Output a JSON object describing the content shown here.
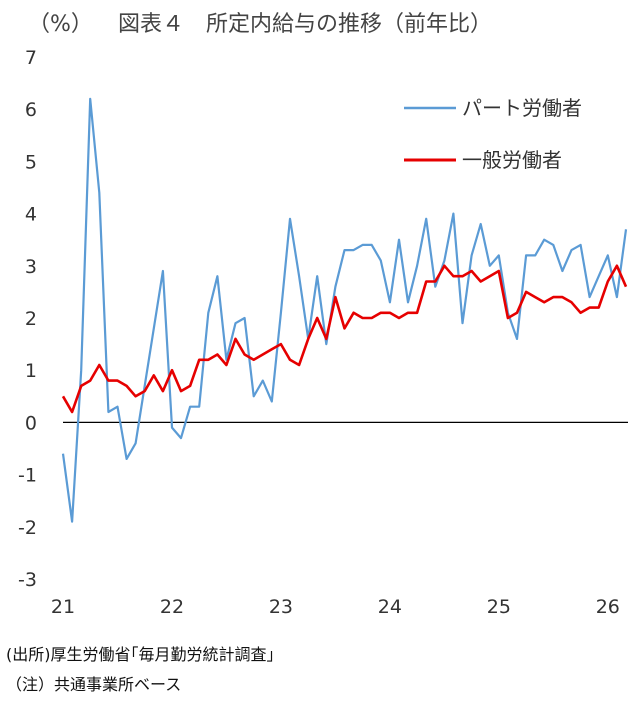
{
  "chart_data": {
    "type": "line",
    "unit_label": "（%）",
    "title": "図表４　所定内給与の推移（前年比）",
    "ylim": [
      -3,
      7
    ],
    "yticks": [
      "-3",
      "-2",
      "-1",
      "0",
      "1",
      "2",
      "3",
      "4",
      "5",
      "6",
      "7"
    ],
    "xticks": [
      "21",
      "22",
      "23",
      "24",
      "25",
      "26"
    ],
    "x_start": "2021-01",
    "legend_position": "top-right",
    "series": [
      {
        "name": "パート労働者",
        "color": "#5b9bd5",
        "values": [
          -0.6,
          -1.9,
          1.0,
          6.2,
          4.4,
          0.2,
          0.3,
          -0.7,
          -0.4,
          0.7,
          1.8,
          2.9,
          -0.1,
          -0.3,
          0.3,
          0.3,
          2.1,
          2.8,
          1.2,
          1.9,
          2.0,
          0.5,
          0.8,
          0.4,
          2.1,
          3.9,
          2.8,
          1.6,
          2.8,
          1.5,
          2.6,
          3.3,
          3.3,
          3.4,
          3.4,
          3.1,
          2.3,
          3.5,
          2.3,
          3.0,
          3.9,
          2.6,
          3.1,
          4.0,
          1.9,
          3.2,
          3.8,
          3.0,
          3.2,
          2.1,
          1.6,
          3.2,
          3.2,
          3.5,
          3.4,
          2.9,
          3.3,
          3.4,
          2.4,
          2.8,
          3.2,
          2.4,
          3.7
        ]
      },
      {
        "name": "一般労働者",
        "color": "#e60000",
        "values": [
          0.5,
          0.2,
          0.7,
          0.8,
          1.1,
          0.8,
          0.8,
          0.7,
          0.5,
          0.6,
          0.9,
          0.6,
          1.0,
          0.6,
          0.7,
          1.2,
          1.2,
          1.3,
          1.1,
          1.6,
          1.3,
          1.2,
          1.3,
          1.4,
          1.5,
          1.2,
          1.1,
          1.6,
          2.0,
          1.6,
          2.4,
          1.8,
          2.1,
          2.0,
          2.0,
          2.1,
          2.1,
          2.0,
          2.1,
          2.1,
          2.7,
          2.7,
          3.0,
          2.8,
          2.8,
          2.9,
          2.7,
          2.8,
          2.9,
          2.0,
          2.1,
          2.5,
          2.4,
          2.3,
          2.4,
          2.4,
          2.3,
          2.1,
          2.2,
          2.2,
          2.7,
          3.0,
          2.6
        ]
      }
    ]
  },
  "notes": {
    "source": "(出所)厚生労働省｢毎月勤労統計調査｣",
    "note": "（注）共通事業所ベース"
  }
}
